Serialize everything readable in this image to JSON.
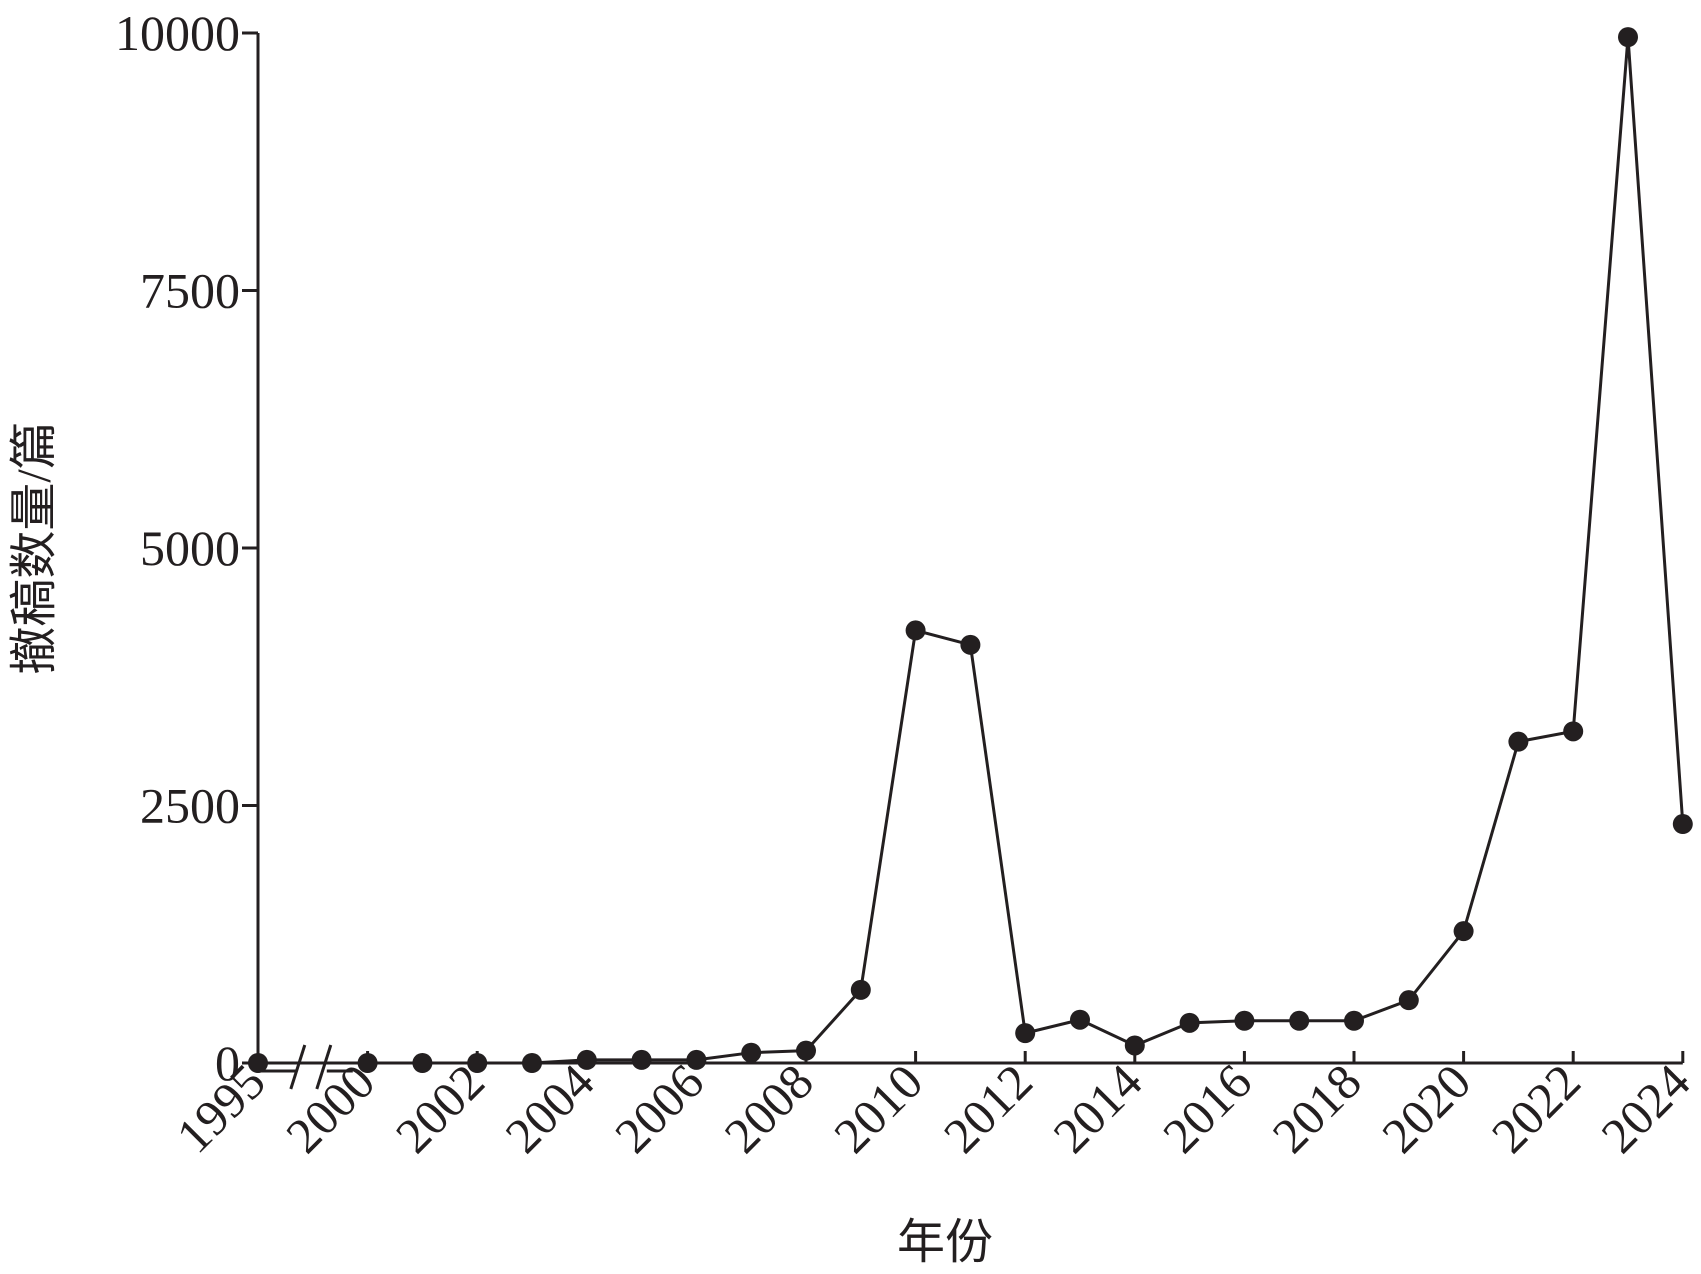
{
  "chart_data": {
    "type": "line",
    "x_label": "年份",
    "y_label": "撤稿数量/篇",
    "categories": [
      "1995",
      "2000",
      null,
      "2002",
      null,
      "2004",
      null,
      "2006",
      null,
      "2008",
      null,
      "2010",
      null,
      "2012",
      null,
      "2014",
      null,
      "2016",
      null,
      "2018",
      null,
      "2020",
      null,
      "2022",
      null,
      "2024"
    ],
    "series": [
      {
        "name": "撤稿数量",
        "color": "#231f20",
        "values": [
          0,
          0,
          0,
          0,
          0,
          30,
          30,
          30,
          100,
          120,
          710,
          4200,
          4060,
          290,
          420,
          170,
          390,
          410,
          410,
          410,
          610,
          1280,
          3120,
          3220,
          9960,
          2320
        ]
      }
    ],
    "ylim": [
      0,
      10000
    ],
    "yticks": [
      0,
      2500,
      5000,
      7500,
      10000
    ],
    "grid": false
  }
}
